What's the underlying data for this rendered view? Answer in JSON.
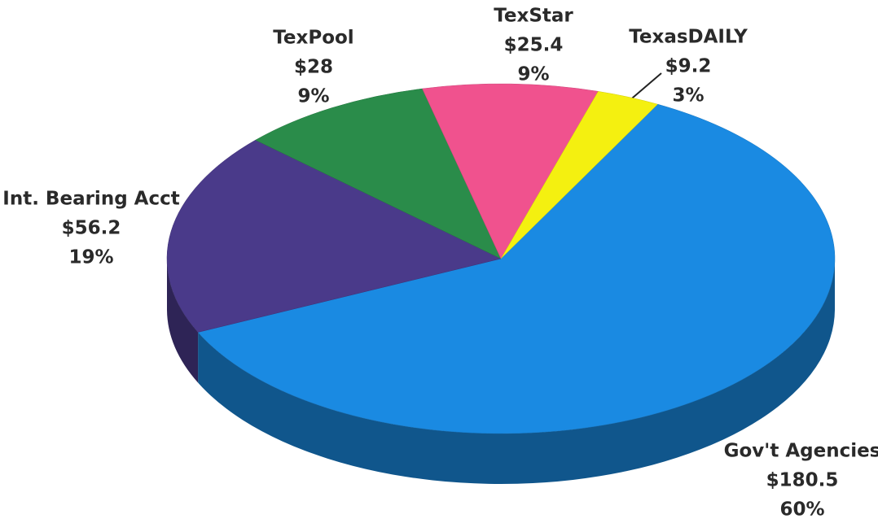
{
  "chart_data": {
    "type": "pie3d",
    "categories": [
      "Gov't Agencies",
      "Int. Bearing Acct",
      "TexPool",
      "TexStar",
      "TexasDAILY"
    ],
    "values": [
      180.5,
      56.2,
      28,
      25.4,
      9.2
    ],
    "value_labels": [
      "$180.5",
      "$56.2",
      "$28",
      "$25.4",
      "$9.2"
    ],
    "percent_labels": [
      "60%",
      "19%",
      "9%",
      "9%",
      "3%"
    ],
    "colors": [
      "#1a8ae2",
      "#4a3a8a",
      "#2a8c4a",
      "#f0528e",
      "#f4f010"
    ]
  }
}
